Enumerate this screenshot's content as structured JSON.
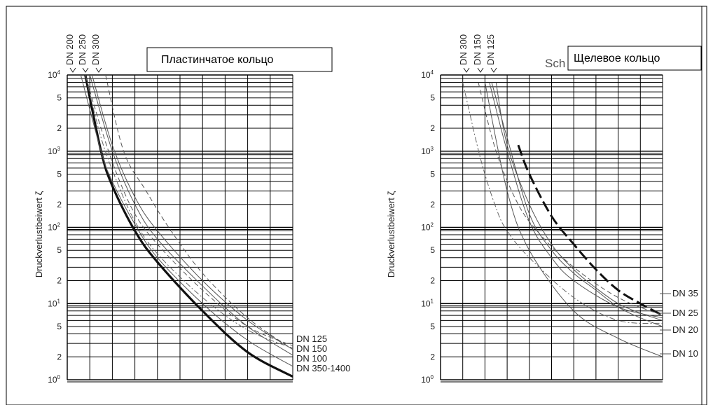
{
  "charts": [
    {
      "box_label": "Пластинчатое кольцо",
      "partial_title": "",
      "ylabel": "Druckverlustbeiwert ζ",
      "top_labels": [
        "DN 200",
        "DN 250",
        "DN 300"
      ],
      "right_labels": [
        "DN 125",
        "DN 150",
        "DN 100",
        "DN 350-1400"
      ]
    },
    {
      "box_label": "Щелевое кольцо",
      "partial_title": "Sch",
      "ylabel": "Druckverlustbeiwert ζ",
      "top_labels": [
        "DN 300",
        "DN 150",
        "DN 125"
      ],
      "right_labels": [
        "DN 35",
        "DN 25",
        "DN 20",
        "DN 10"
      ]
    }
  ],
  "axis": {
    "x_ticks": [
      "0",
      "20",
      "40",
      "60",
      "80",
      "100"
    ],
    "y_decade_base": "10",
    "y_decade_exps": [
      "0",
      "1",
      "2",
      "3",
      "4"
    ],
    "y_minor_ticks": [
      "2",
      "5"
    ]
  },
  "chart_data": [
    {
      "type": "line",
      "title": "Пластинчатое кольцо",
      "ylabel": "Druckverlustbeiwert ζ",
      "xlabel": "",
      "xlim": [
        0,
        100
      ],
      "ylim": [
        1,
        10000
      ],
      "yscale": "log",
      "grid": true,
      "series": [
        {
          "name": "DN 350-1400",
          "style": "bold",
          "x": [
            8,
            15,
            20,
            30,
            40,
            60,
            80,
            100
          ],
          "y": [
            10000,
            1000,
            350,
            90,
            35,
            8,
            2.3,
            1.1
          ]
        },
        {
          "name": "DN 100",
          "style": "solid",
          "x": [
            6,
            15,
            20,
            30,
            40,
            60,
            80,
            100
          ],
          "y": [
            10000,
            1000,
            400,
            110,
            40,
            10,
            3.3,
            1.5
          ]
        },
        {
          "name": "DN 150",
          "style": "solid",
          "x": [
            10,
            20,
            30,
            40,
            60,
            80,
            100
          ],
          "y": [
            10000,
            1000,
            200,
            70,
            17,
            5,
            2.1
          ]
        },
        {
          "name": "DN 125",
          "style": "dashdot",
          "x": [
            8,
            15,
            22,
            30,
            40,
            60,
            80,
            100
          ],
          "y": [
            10000,
            1500,
            400,
            120,
            45,
            12,
            4.5,
            2.6
          ]
        },
        {
          "name": "DN 200",
          "style": "dashed",
          "x": [
            8,
            15,
            22,
            30,
            40,
            60,
            80,
            100
          ],
          "y": [
            10000,
            2000,
            500,
            150,
            60,
            15,
            5,
            2.8
          ]
        },
        {
          "name": "DN 250",
          "style": "solid",
          "x": [
            11,
            20,
            30,
            40,
            60,
            80,
            100
          ],
          "y": [
            10000,
            1200,
            250,
            90,
            20,
            6,
            2.5
          ]
        },
        {
          "name": "DN 300",
          "style": "dashed",
          "x": [
            17,
            25,
            35,
            45,
            60,
            80,
            100
          ],
          "y": [
            10000,
            1000,
            300,
            100,
            25,
            6.5,
            2.5
          ]
        }
      ]
    },
    {
      "type": "line",
      "title": "Щелевое кольцо",
      "ylabel": "Druckverlustbeiwert ζ",
      "xlabel": "",
      "xlim": [
        0,
        100
      ],
      "ylim": [
        1,
        10000
      ],
      "yscale": "log",
      "grid": true,
      "series": [
        {
          "name": "DN 35",
          "style": "bold-dashed",
          "x": [
            35,
            40,
            50,
            60,
            70,
            80,
            90,
            100
          ],
          "y": [
            1200,
            500,
            140,
            60,
            28,
            15,
            10,
            7
          ]
        },
        {
          "name": "DN 25",
          "style": "solid",
          "x": [
            25,
            30,
            40,
            50,
            60,
            70,
            80,
            90,
            100
          ],
          "y": [
            8000,
            1200,
            200,
            60,
            28,
            16,
            10,
            7.5,
            6
          ]
        },
        {
          "name": "DN 20",
          "style": "solid",
          "x": [
            23,
            30,
            40,
            50,
            60,
            70,
            80,
            90,
            100
          ],
          "y": [
            8000,
            1500,
            150,
            50,
            25,
            15,
            9,
            6.5,
            5
          ]
        },
        {
          "name": "DN 10",
          "style": "solid",
          "x": [
            20,
            30,
            40,
            60,
            80,
            100
          ],
          "y": [
            8000,
            300,
            50,
            8,
            3.5,
            2
          ]
        },
        {
          "name": "DN 300",
          "style": "dashdot",
          "x": [
            10,
            18,
            25,
            30,
            40,
            60,
            80,
            100
          ],
          "y": [
            8000,
            800,
            180,
            90,
            40,
            12,
            6,
            5.5
          ]
        },
        {
          "name": "DN 150",
          "style": "dashed",
          "x": [
            17,
            25,
            35,
            45,
            60,
            80,
            100
          ],
          "y": [
            8000,
            1000,
            200,
            80,
            30,
            12,
            7
          ]
        },
        {
          "name": "DN 125",
          "style": "solid",
          "x": [
            22,
            30,
            40,
            50,
            60,
            80,
            100
          ],
          "y": [
            8000,
            1000,
            120,
            40,
            20,
            9,
            6.5
          ]
        }
      ]
    }
  ]
}
